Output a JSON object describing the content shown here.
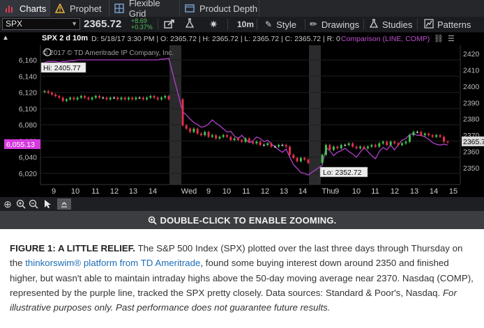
{
  "tabs": [
    {
      "label": "Charts",
      "icon": "bar-chart-icon",
      "active": true
    },
    {
      "label": "Prophet",
      "icon": "warning-triangle-icon",
      "active": false
    },
    {
      "label": "Flexible Grid",
      "icon": "grid-icon",
      "active": false
    },
    {
      "label": "Product Depth",
      "icon": "product-depth-icon",
      "active": false
    }
  ],
  "toolbar": {
    "symbol": "SPX",
    "last_price": "2365.72",
    "change": "+8.69",
    "change_pct": "+0.37%",
    "aggregation": "10m",
    "style_label": "Style",
    "drawings_label": "Drawings",
    "studies_label": "Studies",
    "patterns_label": "Patterns"
  },
  "chart_header": {
    "title": "SPX 2 d 10m",
    "info": "D: 5/18/17 3:30 PM | O: 2365.72 | H: 2365.72 | L: 2365.72 | C: 2365.72 | R: 0",
    "comparison": "Comparison (LINE, COMP)"
  },
  "chart": {
    "copyright": "© 2017 © TD Ameritrade IP Company, Inc.",
    "hi_label": "Hi: 2405.77",
    "lo_label": "Lo: 2352.72",
    "left_marker": "6,055.13",
    "right_marker": "2365.72",
    "colors": {
      "up": "#3ec24c",
      "down": "#e0304a",
      "comp": "#b040c8",
      "flat": "#cccccc"
    }
  },
  "chart_data": {
    "type": "candlestick",
    "x_tick_labels": [
      "9",
      "10",
      "11",
      "12",
      "13",
      "14",
      "Wed",
      "9",
      "10",
      "11",
      "12",
      "13",
      "14",
      "Thu",
      "9",
      "10",
      "11",
      "12",
      "13",
      "14",
      "15"
    ],
    "left_axis": {
      "ticks": [
        "6,160",
        "6,140",
        "6,120",
        "6,100",
        "6,080",
        "6,060",
        "6,040",
        "6,020"
      ]
    },
    "right_axis": {
      "ticks": [
        "2420",
        "2410",
        "2400",
        "2390",
        "2380",
        "2370",
        "2360",
        "2350"
      ]
    },
    "series": [
      {
        "name": "SPX",
        "axis": "right"
      },
      {
        "name": "COMP",
        "axis": "left",
        "style": "line"
      }
    ],
    "spx_close": [
      2397,
      2396,
      2395,
      2394,
      2393,
      2391,
      2392,
      2393,
      2392,
      2393,
      2394,
      2393,
      2392,
      2393,
      2394,
      2393,
      2393,
      2392,
      2393,
      2393,
      2392,
      2393,
      2392,
      2393,
      2392,
      2393,
      2393,
      2392,
      2393,
      2394,
      2393,
      2392,
      2393,
      2394,
      2392,
      2376,
      2374,
      2372,
      2374,
      2371,
      2370,
      2372,
      2369,
      2370,
      2368,
      2369,
      2370,
      2369,
      2367,
      2368,
      2367,
      2366,
      2368,
      2366,
      2365,
      2366,
      2364,
      2364,
      2365,
      2363,
      2363,
      2364,
      2364,
      2363,
      2358,
      2356,
      2354,
      2356,
      2355,
      2353,
      2358,
      2364,
      2361,
      2363,
      2362,
      2364,
      2364,
      2365,
      2363,
      2362,
      2363,
      2362,
      2363,
      2364,
      2363,
      2365,
      2366,
      2364,
      2366,
      2365,
      2364,
      2365,
      2366,
      2370,
      2372,
      2372,
      2370,
      2371,
      2370,
      2369,
      2370,
      2369,
      2366,
      2365.72
    ],
    "comp_values": [
      6157,
      6158,
      6158,
      6158,
      6157,
      6158,
      6158,
      6159,
      6159,
      6160,
      6160,
      6160,
      6160,
      6160,
      6160,
      6160,
      6160,
      6160,
      6160,
      6160,
      6160,
      6160,
      6160,
      6160,
      6160,
      6160,
      6160,
      6160,
      6160,
      6160,
      6160,
      6160,
      6161,
      6161,
      6162,
      6096,
      6092,
      6087,
      6083,
      6080,
      6077,
      6078,
      6081,
      6086,
      6082,
      6079,
      6075,
      6071,
      6072,
      6066,
      6063,
      6067,
      6062,
      6058,
      6060,
      6065,
      6063,
      6059,
      6061,
      6056,
      6053,
      6049,
      6046,
      6050,
      6040,
      6031,
      6026,
      6021,
      6020,
      6018,
      6030,
      6052,
      6048,
      6042,
      6046,
      6048,
      6051,
      6047,
      6044,
      6040,
      6046,
      6052,
      6047,
      6042,
      6038,
      6047,
      6052,
      6049,
      6055,
      6049,
      6055,
      6061,
      6063,
      6068,
      6069,
      6067,
      6067,
      6065,
      6062,
      6058,
      6056,
      6055,
      6056,
      6055.13
    ],
    "hi": 2405.77,
    "lo": 2352.72
  },
  "zoom_bar": {
    "text": "DOUBLE-CLICK TO ENABLE ZOOMING."
  },
  "caption": {
    "title": "FIGURE 1: A LITTLE RELIEF.",
    "text1": " The S&P 500 Index (SPX) plotted over the last three days through Thursday on the ",
    "link": "thinkorswim® platform from TD Ameritrade",
    "text2": ", found some buying interest down around 2350 and finished higher, but wasn't able to maintain intraday highs above the 50-day moving average near 2370. Nasdaq (COMP), represented by the purple line, tracked the SPX pretty closely. Data sources: Standard & Poor's, Nasdaq. ",
    "italic": "For illustrative purposes only. Past performance does not guarantee future results."
  }
}
